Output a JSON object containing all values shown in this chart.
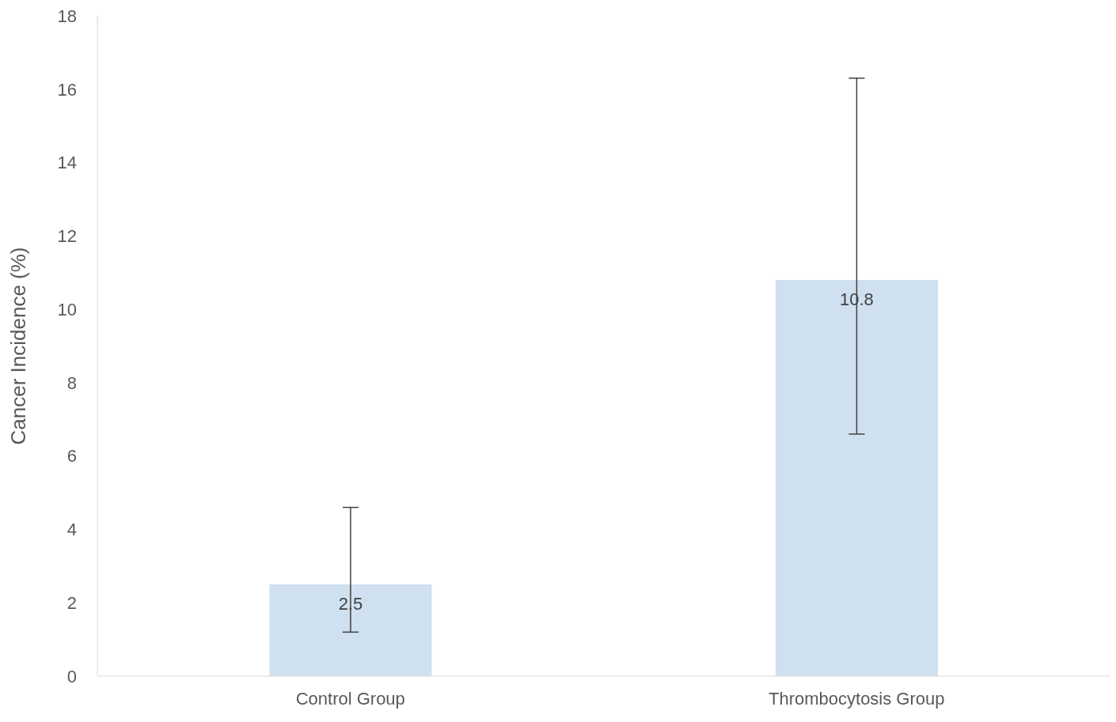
{
  "chart_data": {
    "type": "bar",
    "ylabel": "Cancer Incidence (%)",
    "categories": [
      "Control Group",
      "Thrombocytosis Group"
    ],
    "values": [
      2.5,
      10.8
    ],
    "color": "#cfe0f0",
    "errors": [
      [
        1.2,
        4.6
      ],
      [
        6.6,
        16.3
      ]
    ],
    "data_labels": true,
    "ylim": [
      0,
      18
    ],
    "yticks": [
      0,
      2,
      4,
      6,
      8,
      10,
      12,
      14,
      16,
      18
    ],
    "grid": false,
    "legend": false
  }
}
